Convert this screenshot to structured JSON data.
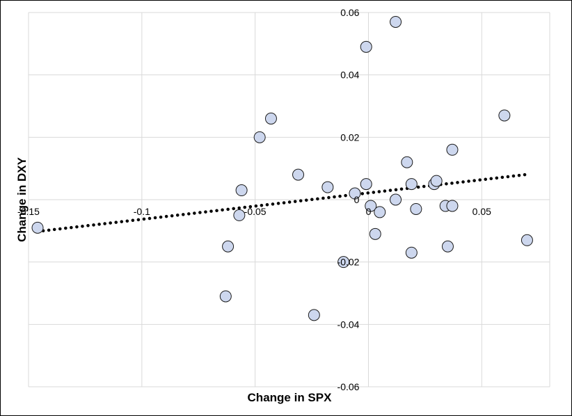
{
  "chart_data": {
    "type": "scatter",
    "xlabel": "Change in SPX",
    "ylabel": "Change in DXY",
    "xlim": [
      -0.15,
      0.08
    ],
    "ylim": [
      -0.06,
      0.06
    ],
    "x_ticks": [
      -0.15,
      -0.1,
      -0.05,
      0,
      0.05
    ],
    "x_tick_labels": [
      "-0.15",
      "-0.1",
      "-0.05",
      "0",
      "0.05"
    ],
    "y_ticks": [
      0.06,
      0.04,
      0.02,
      0,
      -0.02,
      -0.04,
      -0.06
    ],
    "y_tick_labels": [
      "0.06",
      "0.04",
      "0.02",
      "0",
      "-0.02",
      "-0.04",
      "-0.06"
    ],
    "grid": true,
    "points": [
      {
        "x": -0.146,
        "y": -0.009
      },
      {
        "x": -0.063,
        "y": -0.031
      },
      {
        "x": -0.062,
        "y": -0.015
      },
      {
        "x": -0.057,
        "y": -0.005
      },
      {
        "x": -0.056,
        "y": 0.003
      },
      {
        "x": -0.048,
        "y": 0.02
      },
      {
        "x": -0.043,
        "y": 0.026
      },
      {
        "x": -0.031,
        "y": 0.008
      },
      {
        "x": -0.024,
        "y": -0.037
      },
      {
        "x": -0.018,
        "y": 0.004
      },
      {
        "x": -0.011,
        "y": -0.02
      },
      {
        "x": -0.006,
        "y": 0.002
      },
      {
        "x": -0.001,
        "y": 0.005
      },
      {
        "x": -0.001,
        "y": 0.049
      },
      {
        "x": 0.001,
        "y": -0.002
      },
      {
        "x": 0.003,
        "y": -0.011
      },
      {
        "x": 0.005,
        "y": -0.004
      },
      {
        "x": 0.012,
        "y": 0.0
      },
      {
        "x": 0.012,
        "y": 0.057
      },
      {
        "x": 0.017,
        "y": 0.012
      },
      {
        "x": 0.019,
        "y": 0.005
      },
      {
        "x": 0.019,
        "y": -0.017
      },
      {
        "x": 0.021,
        "y": -0.003
      },
      {
        "x": 0.029,
        "y": 0.005
      },
      {
        "x": 0.03,
        "y": 0.006
      },
      {
        "x": 0.034,
        "y": -0.002
      },
      {
        "x": 0.035,
        "y": -0.015
      },
      {
        "x": 0.037,
        "y": 0.016
      },
      {
        "x": 0.037,
        "y": -0.002
      },
      {
        "x": 0.06,
        "y": 0.027
      },
      {
        "x": 0.07,
        "y": -0.013
      }
    ],
    "trendline": {
      "style": "dotted",
      "x": [
        -0.146,
        0.069
      ],
      "y": [
        -0.0102,
        0.008
      ]
    },
    "colors": {
      "marker_fill": "#cdd7ee",
      "marker_stroke": "#1a1a1a",
      "grid": "#d9d9d9",
      "trendline": "#000000"
    }
  }
}
